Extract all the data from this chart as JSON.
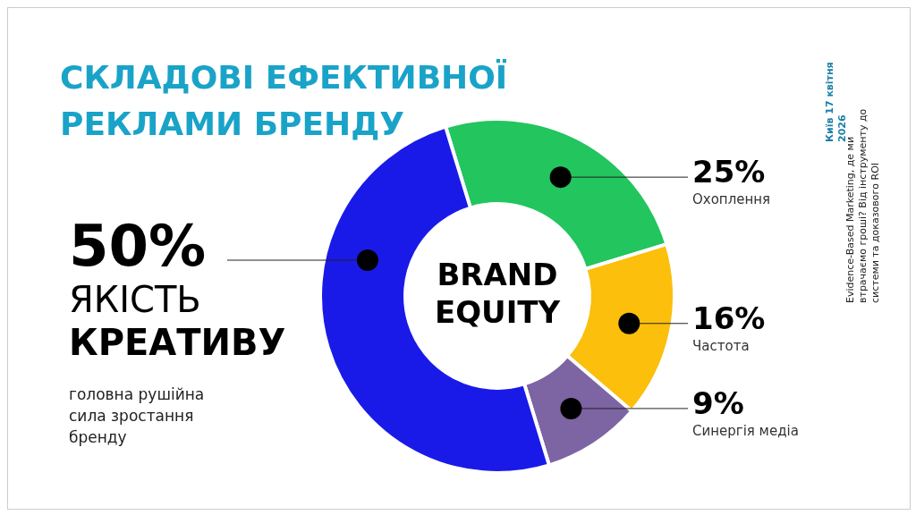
{
  "chart_data": {
    "type": "donut",
    "title": "СКЛАДОВІ ЕФЕКТИВНОЇ РЕКЛАМИ БРЕНДУ",
    "categories": [
      "Охоплення",
      "Частота",
      "Синергія медіа",
      "ЯКІСТЬ КРЕАТИВУ"
    ],
    "values": [
      25,
      16,
      9,
      50
    ],
    "colors": [
      "#22c55e",
      "#fbbf0c",
      "#7d64a2",
      "#1a1ae8"
    ],
    "value_labels": [
      "25%",
      "16%",
      "9%",
      "50%"
    ],
    "legend": false,
    "annotations": [
      "BRAND EQUITY",
      "головна рушійна сила зростання бренду",
      "Київ 17 квітня 2026",
      "Evidence-Based Marketing, де ми втрачаємо гроші? Від інструменту до системи та доказового ROI"
    ]
  }
}
